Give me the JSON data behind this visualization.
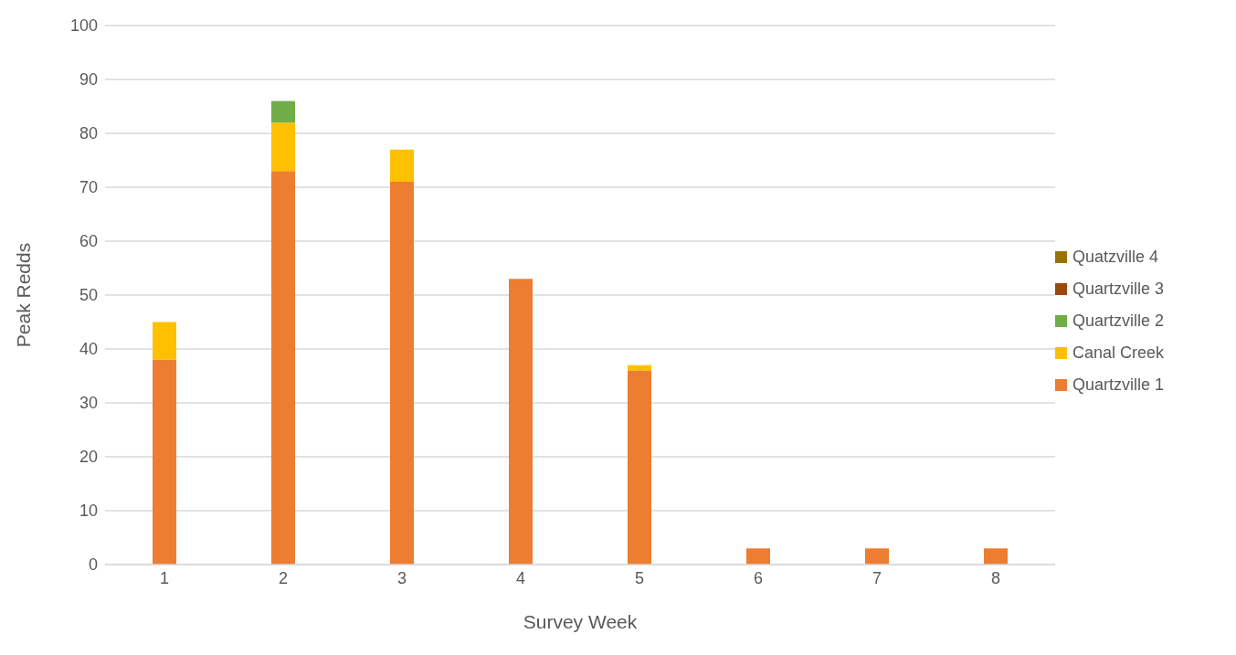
{
  "chart_data": {
    "type": "bar",
    "stacked": true,
    "xlabel": "Survey Week",
    "ylabel": "Peak Redds",
    "categories": [
      "1",
      "2",
      "3",
      "4",
      "5",
      "6",
      "7",
      "8"
    ],
    "series": [
      {
        "name": "Quartzville 1",
        "color": "#ed7d31",
        "values": [
          38,
          73,
          71,
          53,
          36,
          3,
          3,
          3
        ]
      },
      {
        "name": "Canal Creek",
        "color": "#ffc000",
        "values": [
          7,
          9,
          6,
          0,
          1,
          0,
          0,
          0
        ]
      },
      {
        "name": "Quartzville 2",
        "color": "#70ad47",
        "values": [
          0,
          4,
          0,
          0,
          0,
          0,
          0,
          0
        ]
      },
      {
        "name": "Quartzville 3",
        "color": "#9e480e",
        "values": [
          0,
          0,
          0,
          0,
          0,
          0,
          0,
          0
        ]
      },
      {
        "name": "Quatzville 4",
        "color": "#997300",
        "values": [
          0,
          0,
          0,
          0,
          0,
          0,
          0,
          0
        ]
      }
    ],
    "ylim": [
      0,
      100
    ],
    "yticks": [
      0,
      10,
      20,
      30,
      40,
      50,
      60,
      70,
      80,
      90,
      100
    ],
    "grid": "y",
    "legend": "right"
  }
}
